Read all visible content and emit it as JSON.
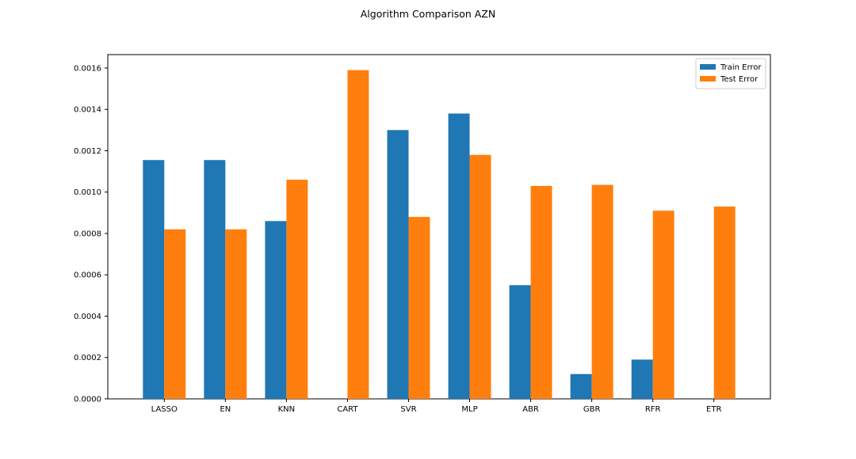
{
  "chart_data": {
    "type": "bar",
    "title": "Algorithm Comparison AZN",
    "xlabel": "",
    "ylabel": "",
    "categories": [
      "LASSO",
      "EN",
      "KNN",
      "CART",
      "SVR",
      "MLP",
      "ABR",
      "GBR",
      "RFR",
      "ETR"
    ],
    "series": [
      {
        "name": "Train Error",
        "color": "#1f77b4",
        "values": [
          0.001155,
          0.001155,
          0.00086,
          0.0,
          0.0013,
          0.00138,
          0.00055,
          0.00012,
          0.00019,
          0.0
        ]
      },
      {
        "name": "Test Error",
        "color": "#ff7f0e",
        "values": [
          0.00082,
          0.00082,
          0.00106,
          0.00159,
          0.00088,
          0.00118,
          0.00103,
          0.001035,
          0.00091,
          0.00093
        ]
      }
    ],
    "ylim": [
      0,
      0.001665
    ],
    "yticks": [
      "0.0000",
      "0.0002",
      "0.0004",
      "0.0006",
      "0.0008",
      "0.0010",
      "0.0012",
      "0.0014",
      "0.0016"
    ],
    "ytick_values": [
      0,
      0.0002,
      0.0004,
      0.0006,
      0.0008,
      0.001,
      0.0012,
      0.0014,
      0.0016
    ],
    "grid": false,
    "legend_position": "top-right"
  }
}
